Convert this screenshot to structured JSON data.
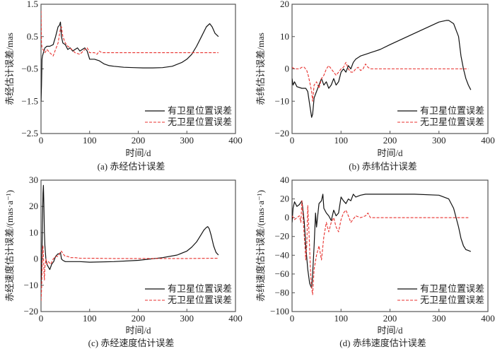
{
  "legend": {
    "series_with": "有卫星位置误差",
    "series_without": "无卫星位置误差"
  },
  "colors": {
    "with_error": "#111111",
    "without_error": "#e8322f",
    "frame": "#555555"
  },
  "chart_data": [
    {
      "id": "a",
      "type": "line",
      "caption": "(a) 赤经估计误差",
      "xlabel": "时间/d",
      "ylabel": "赤经估计误差/mas",
      "xlim": [
        0,
        400
      ],
      "ylim": [
        -2.5,
        1.5
      ],
      "xticks": [
        0,
        100,
        200,
        300,
        400
      ],
      "yticks": [
        1.5,
        0.5,
        -0.5,
        -1.5,
        -2.5
      ],
      "ytick_labels": [
        "1.5",
        "0.5",
        "−0.5",
        "−1.5",
        "−2.5"
      ],
      "legend_position": "bottom-right",
      "grid": false,
      "series": [
        {
          "name": "有卫星位置误差",
          "style": "solid",
          "x": [
            0,
            1,
            2,
            3,
            5,
            8,
            12,
            18,
            25,
            30,
            35,
            38,
            40,
            42,
            45,
            50,
            55,
            60,
            65,
            70,
            75,
            80,
            85,
            90,
            95,
            100,
            110,
            120,
            130,
            140,
            150,
            170,
            190,
            210,
            230,
            250,
            270,
            290,
            300,
            310,
            320,
            330,
            340,
            347,
            352,
            358,
            365
          ],
          "y": [
            -1.5,
            -1.0,
            -0.2,
            -0.1,
            0.0,
            0.15,
            0.2,
            0.2,
            0.25,
            0.5,
            0.8,
            0.85,
            0.95,
            0.5,
            0.3,
            0.25,
            0.1,
            0.15,
            0.05,
            0.1,
            0.15,
            0.05,
            0.1,
            0.15,
            0.05,
            -0.2,
            -0.2,
            -0.25,
            -0.35,
            -0.4,
            -0.42,
            -0.45,
            -0.46,
            -0.47,
            -0.47,
            -0.46,
            -0.42,
            -0.3,
            -0.2,
            -0.05,
            0.2,
            0.5,
            0.8,
            0.9,
            0.8,
            0.6,
            0.5
          ]
        },
        {
          "name": "无卫星位置误差",
          "style": "dashed",
          "x": [
            0,
            1,
            2,
            4,
            8,
            12,
            18,
            25,
            30,
            35,
            40,
            42,
            45,
            50,
            55,
            60,
            70,
            80,
            90,
            95,
            100,
            110,
            115,
            120,
            125,
            130,
            150,
            200,
            250,
            300,
            365
          ],
          "y": [
            1.3,
            0.3,
            0.15,
            0.1,
            0.0,
            0.1,
            0.0,
            -0.1,
            0.1,
            0.3,
            0.75,
            0.8,
            0.5,
            0.3,
            0.2,
            0.15,
            0.0,
            -0.05,
            0.1,
            0.15,
            0.0,
            0.0,
            -0.05,
            0.05,
            0.0,
            0.0,
            0.0,
            0.0,
            0.0,
            0.0,
            0.0
          ]
        }
      ]
    },
    {
      "id": "b",
      "type": "line",
      "caption": "(b) 赤纬估计误差",
      "xlabel": "时间/d",
      "ylabel": "赤纬估计误差/mas",
      "xlim": [
        0,
        400
      ],
      "ylim": [
        -20,
        20
      ],
      "xticks": [
        0,
        100,
        200,
        300,
        400
      ],
      "yticks": [
        20,
        10,
        0,
        -10,
        -20
      ],
      "ytick_labels": [
        "20",
        "10",
        "0",
        "−10",
        "−20"
      ],
      "legend_position": "bottom-right",
      "grid": false,
      "series": [
        {
          "name": "有卫星位置误差",
          "style": "solid",
          "x": [
            0,
            2,
            5,
            10,
            20,
            28,
            32,
            36,
            40,
            42,
            45,
            50,
            55,
            60,
            65,
            70,
            75,
            80,
            85,
            90,
            95,
            100,
            105,
            110,
            115,
            120,
            125,
            130,
            140,
            150,
            160,
            170,
            180,
            200,
            250,
            300,
            315,
            320,
            330,
            340,
            345,
            350,
            355,
            360,
            365
          ],
          "y": [
            -3,
            -5,
            -4,
            -5.5,
            -6,
            -6,
            -7,
            -11,
            -15,
            -14,
            -9,
            -7,
            -5,
            -3,
            -5,
            -4,
            -6,
            -5,
            -3,
            -5,
            -4,
            -1,
            0,
            -1,
            1,
            0,
            2,
            3,
            4,
            4.5,
            5,
            5.5,
            6,
            7.5,
            11,
            14.5,
            15,
            15,
            14,
            10,
            4,
            0,
            -3,
            -5,
            -6.5
          ]
        },
        {
          "name": "无卫星位置误差",
          "style": "dashed",
          "x": [
            0,
            5,
            10,
            15,
            20,
            25,
            30,
            33,
            36,
            40,
            42,
            45,
            50,
            55,
            60,
            65,
            70,
            75,
            80,
            85,
            90,
            95,
            100,
            105,
            110,
            115,
            120,
            125,
            130,
            135,
            140,
            145,
            150,
            155,
            160,
            170,
            180,
            200,
            250,
            300,
            360
          ],
          "y": [
            0.5,
            0,
            0,
            0,
            0.5,
            0.5,
            -0.5,
            -2,
            -4,
            -7,
            -10,
            -5,
            -4,
            -6,
            -3,
            -2,
            0,
            1,
            0,
            -1,
            -2,
            -1,
            0,
            0.5,
            2,
            0,
            -1,
            -1,
            0,
            0.5,
            -0.5,
            0,
            1.5,
            0.5,
            0,
            0,
            0,
            0,
            0,
            0,
            0
          ]
        }
      ]
    },
    {
      "id": "c",
      "type": "line",
      "caption": "(c) 赤经速度估计误差",
      "xlabel": "时间/d",
      "ylabel": "赤经速度估计误差/(mas·a⁻¹)",
      "xlim": [
        0,
        400
      ],
      "ylim": [
        -20,
        30
      ],
      "xticks": [
        0,
        100,
        200,
        300,
        400
      ],
      "yticks": [
        30,
        20,
        10,
        0,
        -10,
        -20
      ],
      "ytick_labels": [
        "30",
        "20",
        "10",
        "0",
        "−10",
        "−20"
      ],
      "legend_position": "bottom-right",
      "grid": false,
      "series": [
        {
          "name": "有卫星位置误差",
          "style": "solid",
          "x": [
            0,
            1,
            2,
            3,
            4,
            5,
            6,
            7,
            8,
            10,
            12,
            15,
            18,
            22,
            26,
            30,
            35,
            38,
            40,
            42,
            45,
            50,
            60,
            70,
            80,
            100,
            150,
            200,
            250,
            280,
            300,
            310,
            320,
            330,
            335,
            340,
            343,
            346,
            350,
            355,
            360,
            365
          ],
          "y": [
            -10,
            -5,
            4,
            15,
            25,
            28,
            20,
            10,
            5,
            0,
            -2,
            -3,
            -4,
            -2,
            -1,
            1,
            2,
            2,
            2.5,
            0,
            -0.5,
            -1,
            -1,
            -1,
            -1,
            -1.2,
            -1,
            -0.5,
            0.5,
            1.5,
            3,
            4.5,
            6.5,
            9.5,
            11,
            12,
            12.3,
            11.5,
            9,
            5,
            2.5,
            1.5
          ]
        },
        {
          "name": "无卫星位置误差",
          "style": "dashed",
          "x": [
            0,
            1,
            2,
            3,
            4,
            5,
            6,
            7,
            8,
            10,
            12,
            15,
            20,
            25,
            30,
            35,
            40,
            42,
            45,
            50,
            55,
            60,
            70,
            80,
            100,
            150,
            200,
            250,
            300,
            365
          ],
          "y": [
            -16,
            -12,
            -5,
            4,
            5,
            2,
            -5,
            -8,
            -3,
            0,
            -2,
            -1,
            -2,
            0,
            1,
            1,
            2.5,
            3,
            2,
            1,
            1,
            0.5,
            0.5,
            0.3,
            0.3,
            0.2,
            0.2,
            0.2,
            0.2,
            0.3
          ]
        }
      ]
    },
    {
      "id": "d",
      "type": "line",
      "caption": "(d) 赤纬速度估计误差",
      "xlabel": "时间/d",
      "ylabel": "赤纬速度估计误差/(mas·a⁻¹)",
      "xlim": [
        0,
        400
      ],
      "ylim": [
        -100,
        40
      ],
      "xticks": [
        0,
        100,
        200,
        300,
        400
      ],
      "yticks": [
        40,
        20,
        0,
        -20,
        -40,
        -60,
        -80,
        -100
      ],
      "ytick_labels": [
        "40",
        "20",
        "0",
        "−20",
        "−40",
        "−60",
        "−80",
        "−100"
      ],
      "legend_position": "bottom-right",
      "grid": false,
      "series": [
        {
          "name": "有卫星位置误差",
          "style": "solid",
          "x": [
            0,
            2,
            5,
            10,
            15,
            20,
            22,
            25,
            28,
            32,
            36,
            40,
            42,
            45,
            48,
            50,
            55,
            60,
            63,
            65,
            70,
            75,
            80,
            85,
            90,
            95,
            100,
            105,
            110,
            115,
            120,
            125,
            130,
            140,
            150,
            170,
            200,
            250,
            300,
            320,
            330,
            335,
            340,
            345,
            350,
            355,
            360,
            365
          ],
          "y": [
            -5,
            10,
            17,
            12,
            14,
            18,
            10,
            -5,
            -30,
            -55,
            -70,
            -75,
            -60,
            -30,
            5,
            -10,
            15,
            18,
            25,
            10,
            5,
            2,
            -3,
            8,
            2,
            5,
            22,
            18,
            15,
            20,
            18,
            25,
            22,
            24,
            25,
            25,
            25,
            25,
            24,
            20,
            10,
            0,
            -10,
            -22,
            -30,
            -34,
            -35,
            -36
          ]
        },
        {
          "name": "无卫星位置误差",
          "style": "dashed",
          "x": [
            0,
            5,
            10,
            15,
            18,
            20,
            22,
            25,
            28,
            30,
            32,
            35,
            38,
            40,
            42,
            45,
            50,
            55,
            60,
            65,
            70,
            75,
            80,
            85,
            90,
            95,
            100,
            105,
            110,
            115,
            120,
            130,
            140,
            150,
            155,
            160,
            170,
            200,
            250,
            300,
            360
          ],
          "y": [
            2,
            -2,
            0,
            2,
            -5,
            18,
            5,
            -20,
            -45,
            -30,
            13,
            -20,
            -60,
            -75,
            -82,
            -55,
            -40,
            -30,
            -45,
            -20,
            -5,
            -15,
            -5,
            0,
            -10,
            -15,
            -2,
            5,
            8,
            2,
            -5,
            2,
            0,
            2,
            5,
            0,
            0,
            0,
            0,
            0,
            0
          ]
        }
      ]
    }
  ]
}
